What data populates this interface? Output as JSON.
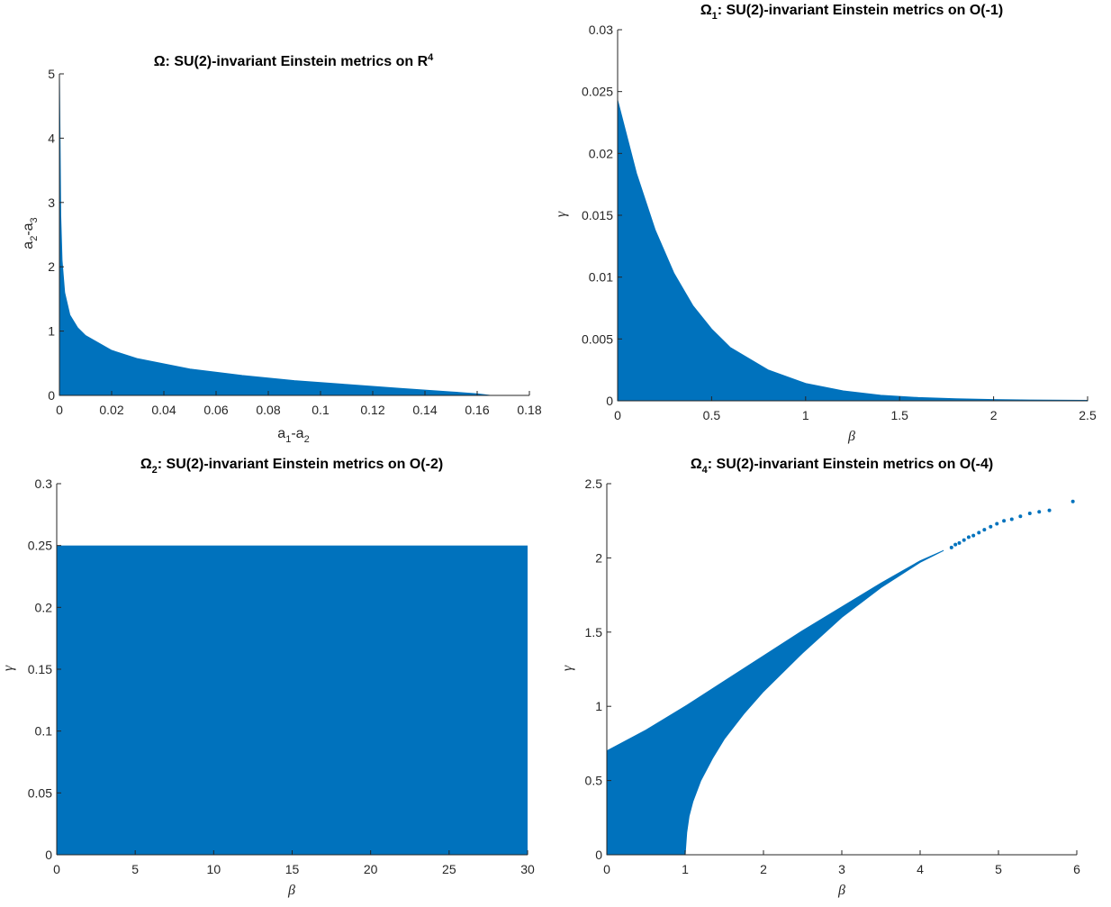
{
  "colors": {
    "fill": "#0072BD",
    "axis": "#262626",
    "background": "#ffffff"
  },
  "chart_data": [
    {
      "id": "omega",
      "type": "area",
      "title": "Ω: SU(2)-invariant Einstein metrics on R⁴",
      "xlabel": "a₁-a₂",
      "ylabel": "a₂-a₃",
      "xlim": [
        0,
        0.18
      ],
      "ylim": [
        0,
        5
      ],
      "xticks": [
        0,
        0.02,
        0.04,
        0.06,
        0.08,
        0.1,
        0.12,
        0.14,
        0.16,
        0.18
      ],
      "xtick_labels": [
        "0",
        "0.02",
        "0.04",
        "0.06",
        "0.08",
        "0.1",
        "0.12",
        "0.14",
        "0.16",
        "0.18"
      ],
      "yticks": [
        0,
        1,
        2,
        3,
        4,
        5
      ],
      "ytick_labels": [
        "0",
        "1",
        "2",
        "3",
        "4",
        "5"
      ],
      "box": "axes-only",
      "region": {
        "x": [
          0,
          0.0005,
          0.001,
          0.002,
          0.004,
          0.007,
          0.01,
          0.02,
          0.03,
          0.05,
          0.07,
          0.09,
          0.11,
          0.13,
          0.15,
          0.16,
          0.165
        ],
        "y": [
          5.0,
          2.8,
          2.1,
          1.6,
          1.25,
          1.05,
          0.93,
          0.7,
          0.57,
          0.41,
          0.31,
          0.23,
          0.17,
          0.11,
          0.055,
          0.025,
          0.0
        ]
      }
    },
    {
      "id": "omega1",
      "type": "area",
      "title": "Ω₁: SU(2)-invariant Einstein metrics on O(-1)",
      "xlabel": "β",
      "ylabel": "γ",
      "xlim": [
        0,
        2.5
      ],
      "ylim": [
        0,
        0.03
      ],
      "xticks": [
        0,
        0.5,
        1,
        1.5,
        2,
        2.5
      ],
      "xtick_labels": [
        "0",
        "0.5",
        "1",
        "1.5",
        "2",
        "2.5"
      ],
      "yticks": [
        0,
        0.005,
        0.01,
        0.015,
        0.02,
        0.025,
        0.03
      ],
      "ytick_labels": [
        "0",
        "0.005",
        "0.01",
        "0.015",
        "0.02",
        "0.025",
        "0.03"
      ],
      "box": "axes-only",
      "region": {
        "x": [
          0,
          0.1,
          0.2,
          0.3,
          0.4,
          0.5,
          0.6,
          0.8,
          1.0,
          1.2,
          1.4,
          1.6,
          1.8,
          2.0,
          2.2,
          2.5
        ],
        "y": [
          0.0243,
          0.0184,
          0.0138,
          0.0103,
          0.0077,
          0.0058,
          0.0043,
          0.0025,
          0.0014,
          0.0008,
          0.00045,
          0.00026,
          0.00016,
          0.0001,
          6e-05,
          4e-05
        ]
      }
    },
    {
      "id": "omega2",
      "type": "area",
      "title": "Ω₂: SU(2)-invariant Einstein metrics on O(-2)",
      "xlabel": "β",
      "ylabel": "γ",
      "xlim": [
        0,
        30
      ],
      "ylim": [
        0,
        0.3
      ],
      "xticks": [
        0,
        5,
        10,
        15,
        20,
        25,
        30
      ],
      "xtick_labels": [
        "0",
        "5",
        "10",
        "15",
        "20",
        "25",
        "30"
      ],
      "yticks": [
        0,
        0.05,
        0.1,
        0.15,
        0.2,
        0.25,
        0.3
      ],
      "ytick_labels": [
        "0",
        "0.05",
        "0.1",
        "0.15",
        "0.2",
        "0.25",
        "0.3"
      ],
      "box": "axes-only",
      "region": {
        "x": [
          0,
          30
        ],
        "y_top": 0.25,
        "y_bottom": 0
      }
    },
    {
      "id": "omega4",
      "type": "area",
      "title": "Ω₄: SU(2)-invariant Einstein metrics on O(-4)",
      "xlabel": "β",
      "ylabel": "γ",
      "xlim": [
        0,
        6
      ],
      "ylim": [
        0,
        2.5
      ],
      "xticks": [
        0,
        1,
        2,
        3,
        4,
        5,
        6
      ],
      "xtick_labels": [
        "0",
        "1",
        "2",
        "3",
        "4",
        "5",
        "6"
      ],
      "yticks": [
        0,
        0.5,
        1,
        1.5,
        2,
        2.5
      ],
      "ytick_labels": [
        "0",
        "0.5",
        "1",
        "1.5",
        "2",
        "2.5"
      ],
      "box": "axes-only",
      "region": {
        "upper": {
          "x": [
            0,
            0.5,
            1.0,
            1.5,
            2.0,
            2.5,
            3.0,
            3.5,
            4.0,
            4.3
          ],
          "y": [
            0.7,
            0.84,
            1.0,
            1.17,
            1.34,
            1.51,
            1.67,
            1.83,
            1.98,
            2.05
          ]
        },
        "lower": {
          "x": [
            0,
            1.0,
            1.0,
            1.02,
            1.05,
            1.1,
            1.2,
            1.35,
            1.5,
            1.75,
            2.0,
            2.5,
            3.0,
            3.5,
            4.0,
            4.3
          ],
          "y": [
            0,
            0,
            0.0,
            0.15,
            0.26,
            0.36,
            0.5,
            0.65,
            0.78,
            0.95,
            1.1,
            1.36,
            1.6,
            1.8,
            1.97,
            2.05
          ]
        }
      },
      "scatter_tail": {
        "x": [
          4.4,
          4.45,
          4.5,
          4.56,
          4.62,
          4.68,
          4.75,
          4.82,
          4.9,
          4.98,
          5.07,
          5.17,
          5.28,
          5.4,
          5.52,
          5.65,
          5.95
        ],
        "y": [
          2.07,
          2.09,
          2.1,
          2.12,
          2.14,
          2.15,
          2.17,
          2.19,
          2.21,
          2.23,
          2.25,
          2.26,
          2.28,
          2.3,
          2.31,
          2.32,
          2.38
        ]
      }
    }
  ]
}
